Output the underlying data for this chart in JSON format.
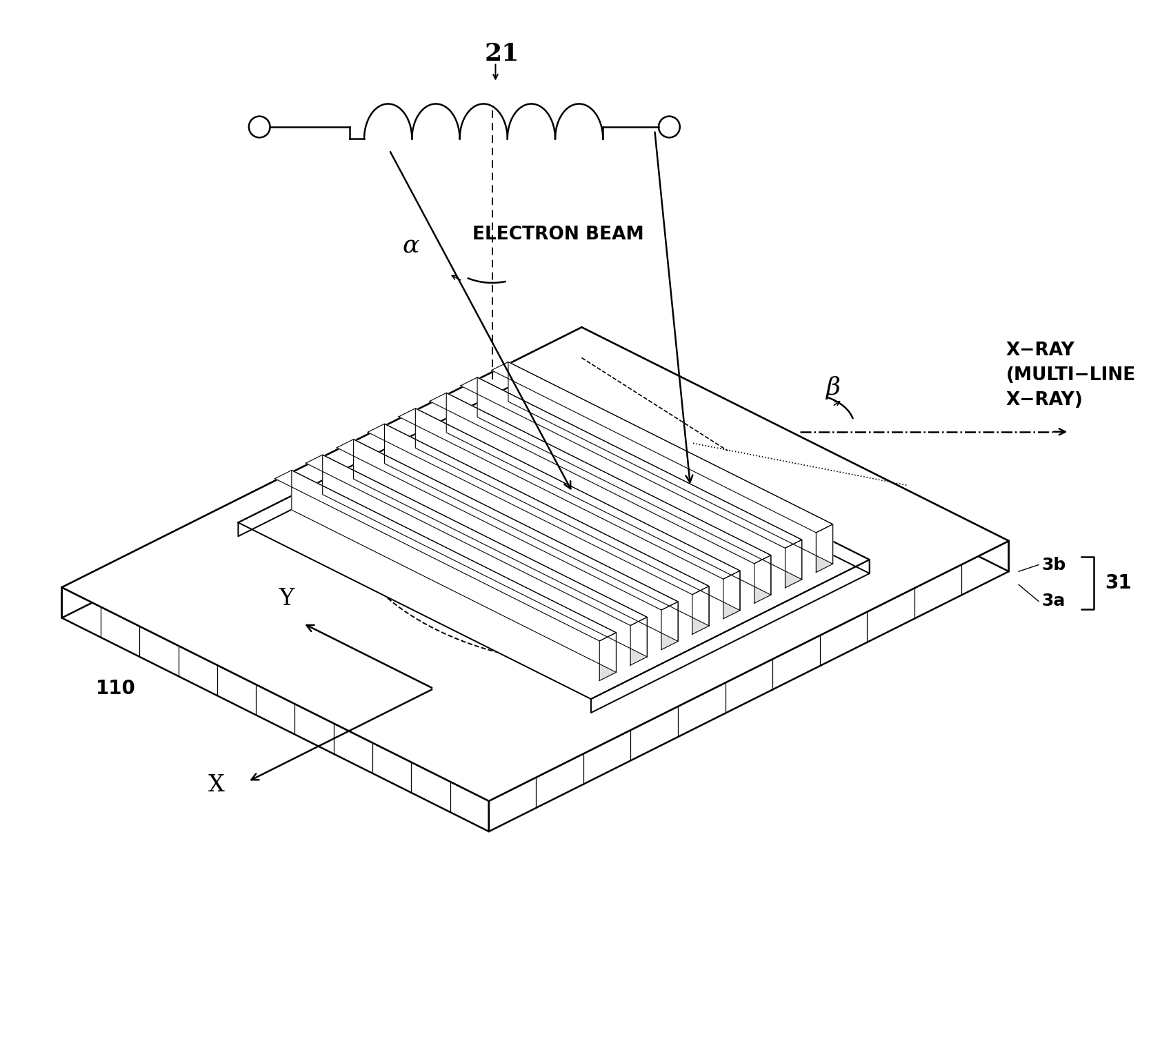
{
  "bg_color": "#ffffff",
  "line_color": "#000000",
  "fig_width": 16.83,
  "fig_height": 15.16,
  "label_21": "21",
  "label_110": "110",
  "label_31": "31",
  "label_3b": "3b",
  "label_3a": "3a",
  "label_alpha": "α",
  "label_beta": "β",
  "label_Y": "Y",
  "label_X": "X",
  "label_electron_beam": "ELECTRON BEAM",
  "label_xray": "X−RAY\n(MULTI−LINE\nX−RAY)"
}
